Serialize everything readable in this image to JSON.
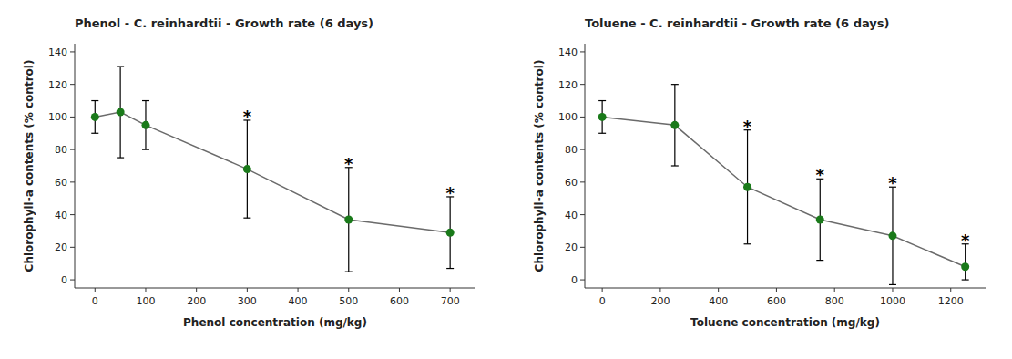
{
  "chart_data": [
    {
      "type": "line",
      "title": "Phenol - C. reinhardtii - Growth rate (6 days)",
      "x_label": "Phenol concentration (mg/kg)",
      "y_label": "Chlorophyll-a contents (% control)",
      "x": [
        0,
        50,
        100,
        300,
        500,
        700
      ],
      "values": [
        100,
        103,
        95,
        68,
        37,
        29
      ],
      "error_low": [
        10,
        28,
        15,
        30,
        32,
        22
      ],
      "error_high": [
        10,
        28,
        15,
        30,
        32,
        22
      ],
      "annotations": [
        {
          "x": 300,
          "text": "*"
        },
        {
          "x": 500,
          "text": "*"
        },
        {
          "x": 700,
          "text": "*"
        }
      ],
      "color": "#1a7a1a",
      "marker": "circle",
      "line_style": "solid",
      "grid": false,
      "xlim": [
        -40,
        750
      ],
      "ylim": [
        -5,
        145
      ],
      "xticks": [
        0,
        100,
        200,
        300,
        400,
        500,
        600,
        700
      ],
      "yticks": [
        0,
        20,
        40,
        60,
        80,
        100,
        120,
        140
      ]
    },
    {
      "type": "line",
      "title": "Toluene - C. reinhardtii - Growth rate (6 days)",
      "x_label": "Toluene concentration (mg/kg)",
      "y_label": "Chlorophyll-a contents (% control)",
      "x": [
        0,
        250,
        500,
        750,
        1000,
        1250
      ],
      "values": [
        100,
        95,
        57,
        37,
        27,
        8
      ],
      "error_low": [
        10,
        25,
        35,
        25,
        30,
        8
      ],
      "error_high": [
        10,
        25,
        35,
        25,
        30,
        14
      ],
      "annotations": [
        {
          "x": 500,
          "text": "*"
        },
        {
          "x": 750,
          "text": "*"
        },
        {
          "x": 1000,
          "text": "*"
        },
        {
          "x": 1250,
          "text": "*"
        }
      ],
      "color": "#1a7a1a",
      "marker": "circle",
      "line_style": "solid",
      "grid": false,
      "xlim": [
        -60,
        1320
      ],
      "ylim": [
        -5,
        145
      ],
      "xticks": [
        0,
        200,
        400,
        600,
        800,
        1000,
        1200
      ],
      "yticks": [
        0,
        20,
        40,
        60,
        80,
        100,
        120,
        140
      ]
    }
  ]
}
